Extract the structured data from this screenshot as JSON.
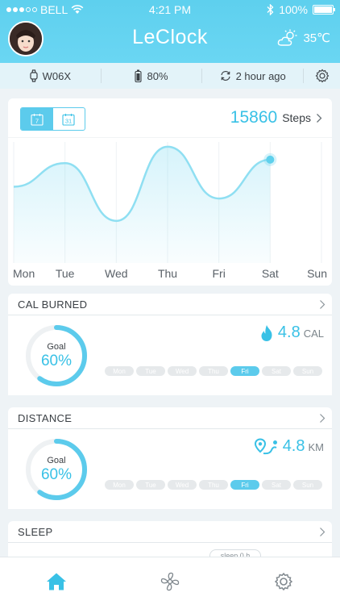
{
  "status_bar": {
    "carrier": "BELL",
    "time": "4:21 PM",
    "battery": "100%"
  },
  "header": {
    "title": "LeClock",
    "weather_temp": "35℃",
    "weather_icon": "partly-cloudy-icon"
  },
  "info_bar": {
    "device": "W06X",
    "device_battery": "80%",
    "sync": "2 hour ago"
  },
  "steps": {
    "date_tabs": [
      "7",
      "31"
    ],
    "value": "15860",
    "unit": "Steps"
  },
  "chart_data": {
    "type": "line",
    "categories": [
      "Mon",
      "Tue",
      "Wed",
      "Thu",
      "Fri",
      "Sat",
      "Sun"
    ],
    "series": [
      {
        "values": [
          0.62,
          0.82,
          0.33,
          0.96,
          0.52,
          0.85,
          null
        ]
      }
    ],
    "highlight_index": 5,
    "accent": "#5fd0ec"
  },
  "cal": {
    "title": "CAL BURNED",
    "goal_label": "Goal",
    "goal_pct": "60%",
    "progress": 0.6,
    "value": "4.8",
    "unit": "CAL",
    "days": [
      "Mon",
      "Tue",
      "Wed",
      "Thu",
      "Fri",
      "Sat",
      "Sun"
    ],
    "active_day": 4
  },
  "distance": {
    "title": "DISTANCE",
    "goal_label": "Goal",
    "goal_pct": "60%",
    "progress": 0.6,
    "value": "4.8",
    "unit": "KM",
    "days": [
      "Mon",
      "Tue",
      "Wed",
      "Thu",
      "Fri",
      "Sat",
      "Sun"
    ],
    "active_day": 4
  },
  "sleep": {
    "title": "SLEEP",
    "pill": "sleep 0 h"
  },
  "colors": {
    "accent": "#39c1e6",
    "header": "#5ed0ee",
    "inactive_pill": "#e6e9eb"
  }
}
